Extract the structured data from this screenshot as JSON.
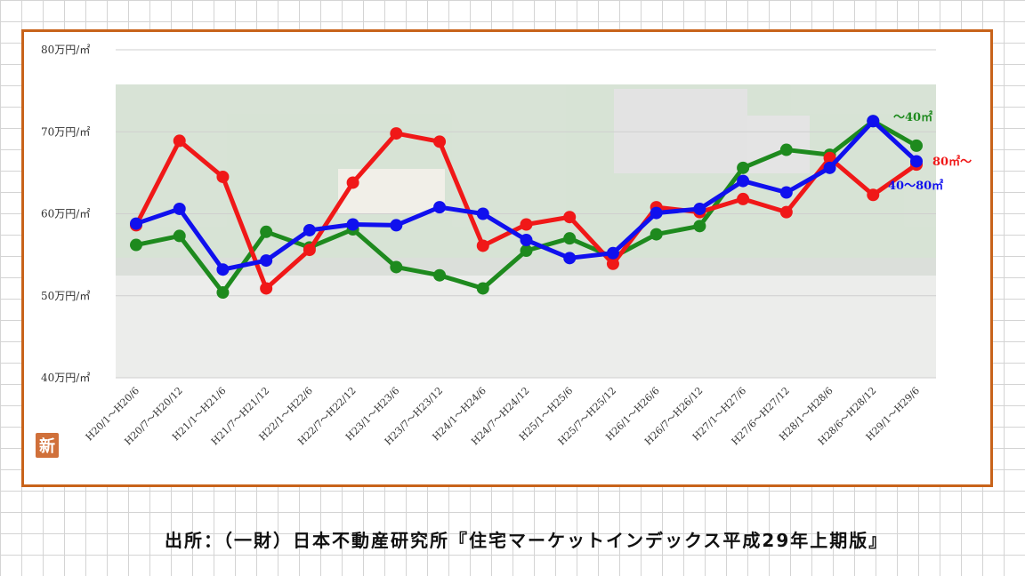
{
  "badge": "新",
  "source": "出所：（一財）日本不動産研究所『住宅マーケットインデックス平成29年上期版』",
  "chart_data": {
    "type": "line",
    "y_ticks": [
      "80万円/㎡",
      "70万円/㎡",
      "60万円/㎡",
      "50万円/㎡",
      "40万円/㎡"
    ],
    "ylim": [
      40,
      80
    ],
    "categories": [
      "H20/1～H20/6",
      "H20/7～H20/12",
      "H21/1～H21/6",
      "H21/7～H21/12",
      "H22/1～H22/6",
      "H22/7～H22/12",
      "H23/1～H23/6",
      "H23/7～H23/12",
      "H24/1～H24/6",
      "H24/7～H24/12",
      "H25/1～H25/6",
      "H25/7～H25/12",
      "H26/1～H26/6",
      "H26/7～H26/12",
      "H27/1～H27/6",
      "H27/6～H27/12",
      "H28/1～H28/6",
      "H28/6～H28/12",
      "H29/1～H29/6"
    ],
    "grid": true,
    "series": [
      {
        "name": "～40㎡",
        "color": "#1e8a1e",
        "values": [
          56.2,
          57.3,
          50.4,
          57.8,
          55.9,
          58.1,
          53.5,
          52.5,
          50.9,
          55.5,
          57.0,
          54.7,
          57.5,
          58.5,
          65.6,
          67.8,
          67.2,
          71.3,
          68.3
        ]
      },
      {
        "name": "80㎡～",
        "color": "#f01818",
        "values": [
          58.6,
          68.9,
          64.5,
          50.9,
          55.6,
          63.8,
          69.8,
          68.8,
          56.1,
          58.7,
          59.6,
          53.9,
          60.8,
          60.2,
          61.8,
          60.2,
          66.8,
          62.3,
          66.0
        ]
      },
      {
        "name": "40～80㎡",
        "color": "#1010ee",
        "values": [
          58.8,
          60.6,
          53.2,
          54.3,
          58.0,
          58.7,
          58.6,
          60.8,
          60.0,
          56.8,
          54.6,
          55.2,
          60.1,
          60.6,
          64.0,
          62.6,
          65.6,
          71.3,
          66.4
        ]
      }
    ]
  }
}
